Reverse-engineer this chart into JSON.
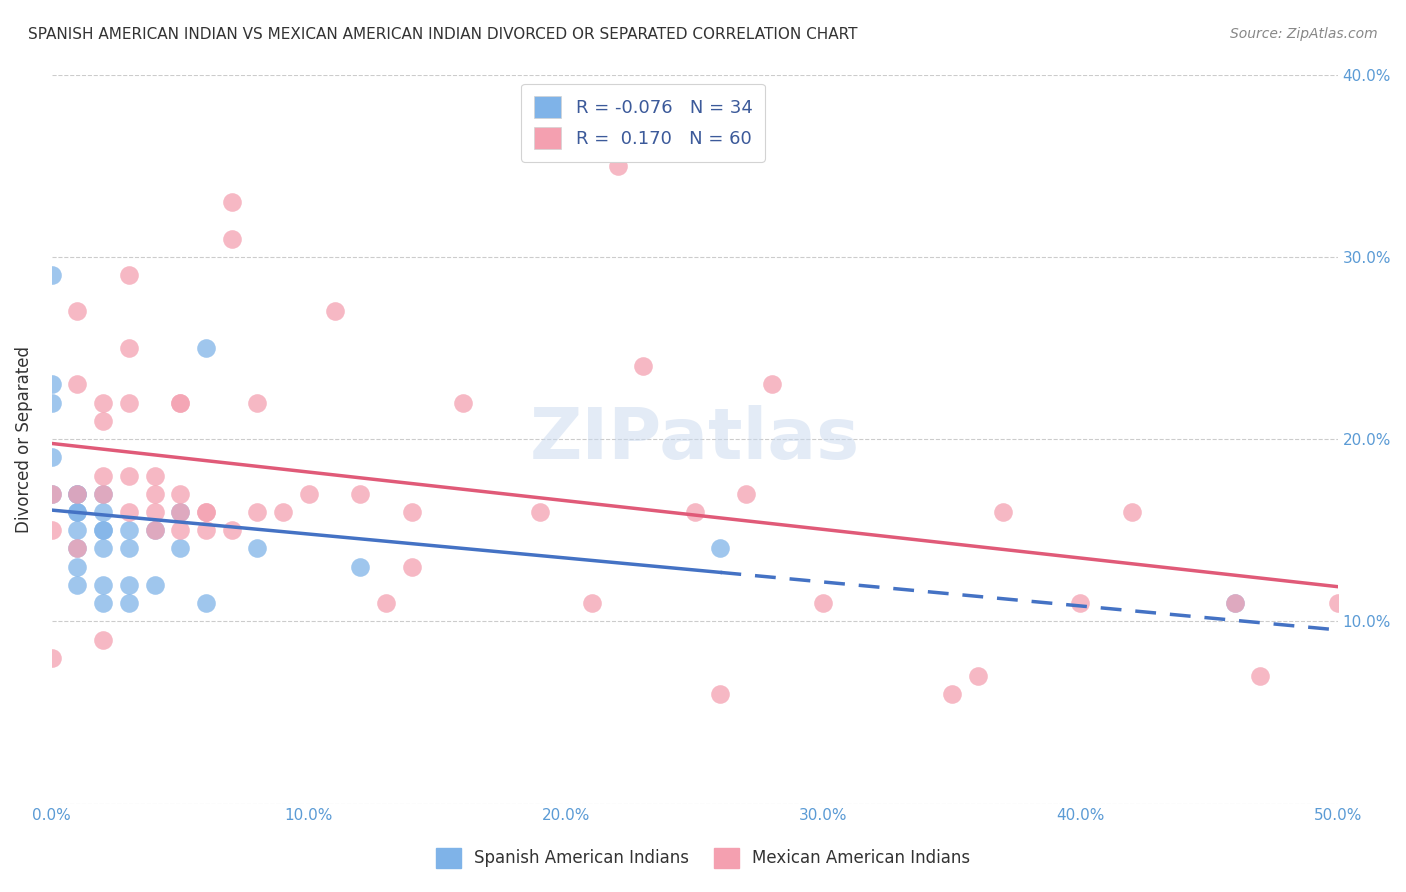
{
  "title": "SPANISH AMERICAN INDIAN VS MEXICAN AMERICAN INDIAN DIVORCED OR SEPARATED CORRELATION CHART",
  "source": "Source: ZipAtlas.com",
  "ylabel": "Divorced or Separated",
  "xlabel": "",
  "xlim": [
    0.0,
    0.5
  ],
  "ylim": [
    0.0,
    0.4
  ],
  "xticks": [
    0.0,
    0.1,
    0.2,
    0.3,
    0.4,
    0.5
  ],
  "yticks": [
    0.0,
    0.1,
    0.2,
    0.3,
    0.4
  ],
  "xtick_labels": [
    "0.0%",
    "10.0%",
    "20.0%",
    "30.0%",
    "40.0%",
    "50.0%"
  ],
  "ytick_labels": [
    "",
    "10.0%",
    "20.0%",
    "30.0%",
    "40.0%"
  ],
  "blue_color": "#7fb3e8",
  "pink_color": "#f4a0b0",
  "blue_line_color": "#4472c4",
  "pink_line_color": "#e05a78",
  "legend_text_color": "#3c5a9a",
  "watermark": "ZIPatlas",
  "blue_R": -0.076,
  "blue_N": 34,
  "pink_R": 0.17,
  "pink_N": 60,
  "blue_points_x": [
    0.0,
    0.0,
    0.0,
    0.0,
    0.0,
    0.01,
    0.01,
    0.01,
    0.01,
    0.01,
    0.01,
    0.01,
    0.01,
    0.02,
    0.02,
    0.02,
    0.02,
    0.02,
    0.02,
    0.02,
    0.03,
    0.03,
    0.03,
    0.03,
    0.04,
    0.04,
    0.05,
    0.05,
    0.06,
    0.06,
    0.08,
    0.12,
    0.26,
    0.46
  ],
  "blue_points_y": [
    0.29,
    0.23,
    0.22,
    0.19,
    0.17,
    0.17,
    0.17,
    0.16,
    0.16,
    0.15,
    0.14,
    0.13,
    0.12,
    0.17,
    0.16,
    0.15,
    0.15,
    0.14,
    0.12,
    0.11,
    0.15,
    0.14,
    0.12,
    0.11,
    0.15,
    0.12,
    0.16,
    0.14,
    0.25,
    0.11,
    0.14,
    0.13,
    0.14,
    0.11
  ],
  "pink_points_x": [
    0.0,
    0.0,
    0.0,
    0.01,
    0.01,
    0.01,
    0.01,
    0.02,
    0.02,
    0.02,
    0.02,
    0.02,
    0.03,
    0.03,
    0.03,
    0.03,
    0.03,
    0.04,
    0.04,
    0.04,
    0.04,
    0.05,
    0.05,
    0.05,
    0.05,
    0.05,
    0.06,
    0.06,
    0.06,
    0.07,
    0.07,
    0.07,
    0.08,
    0.08,
    0.09,
    0.1,
    0.11,
    0.12,
    0.13,
    0.14,
    0.14,
    0.16,
    0.19,
    0.21,
    0.21,
    0.22,
    0.23,
    0.25,
    0.26,
    0.27,
    0.28,
    0.3,
    0.35,
    0.36,
    0.37,
    0.4,
    0.42,
    0.46,
    0.47,
    0.5
  ],
  "pink_points_y": [
    0.17,
    0.15,
    0.08,
    0.27,
    0.23,
    0.17,
    0.14,
    0.22,
    0.21,
    0.18,
    0.17,
    0.09,
    0.29,
    0.25,
    0.22,
    0.18,
    0.16,
    0.18,
    0.17,
    0.16,
    0.15,
    0.22,
    0.22,
    0.17,
    0.16,
    0.15,
    0.16,
    0.16,
    0.15,
    0.33,
    0.31,
    0.15,
    0.22,
    0.16,
    0.16,
    0.17,
    0.27,
    0.17,
    0.11,
    0.16,
    0.13,
    0.22,
    0.16,
    0.11,
    0.37,
    0.35,
    0.24,
    0.16,
    0.06,
    0.17,
    0.23,
    0.11,
    0.06,
    0.07,
    0.16,
    0.11,
    0.16,
    0.11,
    0.07,
    0.11
  ]
}
